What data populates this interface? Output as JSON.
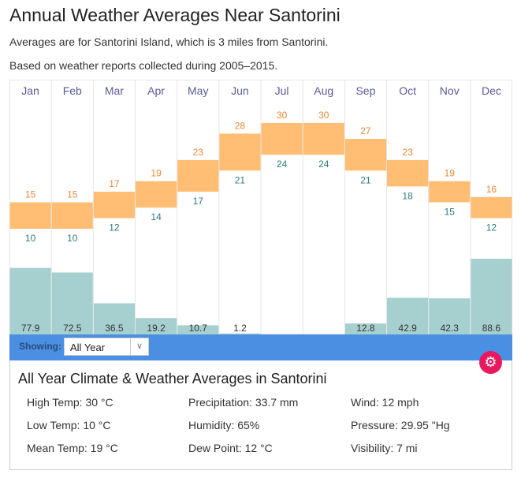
{
  "header": {
    "title": "Annual Weather Averages Near Santorini",
    "subtitle1": "Averages are for Santorini Island, which is 3 miles from Santorini.",
    "subtitle2": "Based on weather reports collected during 2005–2015."
  },
  "controls": {
    "showing_label": "Showing:",
    "selected": "All Year",
    "chevron": "⌄",
    "gear": "⚙"
  },
  "colors": {
    "temp_bar": "#ffbe73",
    "high_label": "#e8883a",
    "low_label": "#2f7a7a",
    "rain_bar": "#a6d0cf",
    "month_label": "#5a5a9a",
    "accent_blue": "#4a8fe2",
    "gear_pink": "#e8195f"
  },
  "chart_data": {
    "type": "bar",
    "title": "Annual Weather Averages Near Santorini",
    "categories": [
      "Jan",
      "Feb",
      "Mar",
      "Apr",
      "May",
      "Jun",
      "Jul",
      "Aug",
      "Sep",
      "Oct",
      "Nov",
      "Dec"
    ],
    "series": [
      {
        "name": "High Temp (°C)",
        "values": [
          15,
          15,
          17,
          19,
          23,
          28,
          30,
          30,
          27,
          23,
          19,
          16
        ]
      },
      {
        "name": "Low Temp (°C)",
        "values": [
          10,
          10,
          12,
          14,
          17,
          21,
          24,
          24,
          21,
          18,
          15,
          12
        ]
      },
      {
        "name": "Precipitation (mm)",
        "values": [
          77.9,
          72.5,
          36.5,
          19.2,
          10.7,
          1.2,
          null,
          null,
          12.8,
          42.9,
          42.3,
          88.6
        ],
        "labels": [
          "77.9",
          "72.5",
          "36.5",
          "19.2",
          "10.7",
          "1.2",
          "",
          "",
          "12.8",
          "42.9",
          "42.3",
          "88.6"
        ]
      }
    ],
    "grid": true,
    "legend": "none"
  },
  "summary": {
    "title": "All Year Climate & Weather Averages in Santorini",
    "stats": [
      [
        "High Temp: 30 °C",
        "Precipitation: 33.7 mm",
        "Wind: 12 mph"
      ],
      [
        "Low Temp: 10 °C",
        "Humidity: 65%",
        "Pressure: 29.95 \"Hg"
      ],
      [
        "Mean Temp: 19 °C",
        "Dew Point: 12 °C",
        "Visibility: 7 mi"
      ]
    ]
  }
}
